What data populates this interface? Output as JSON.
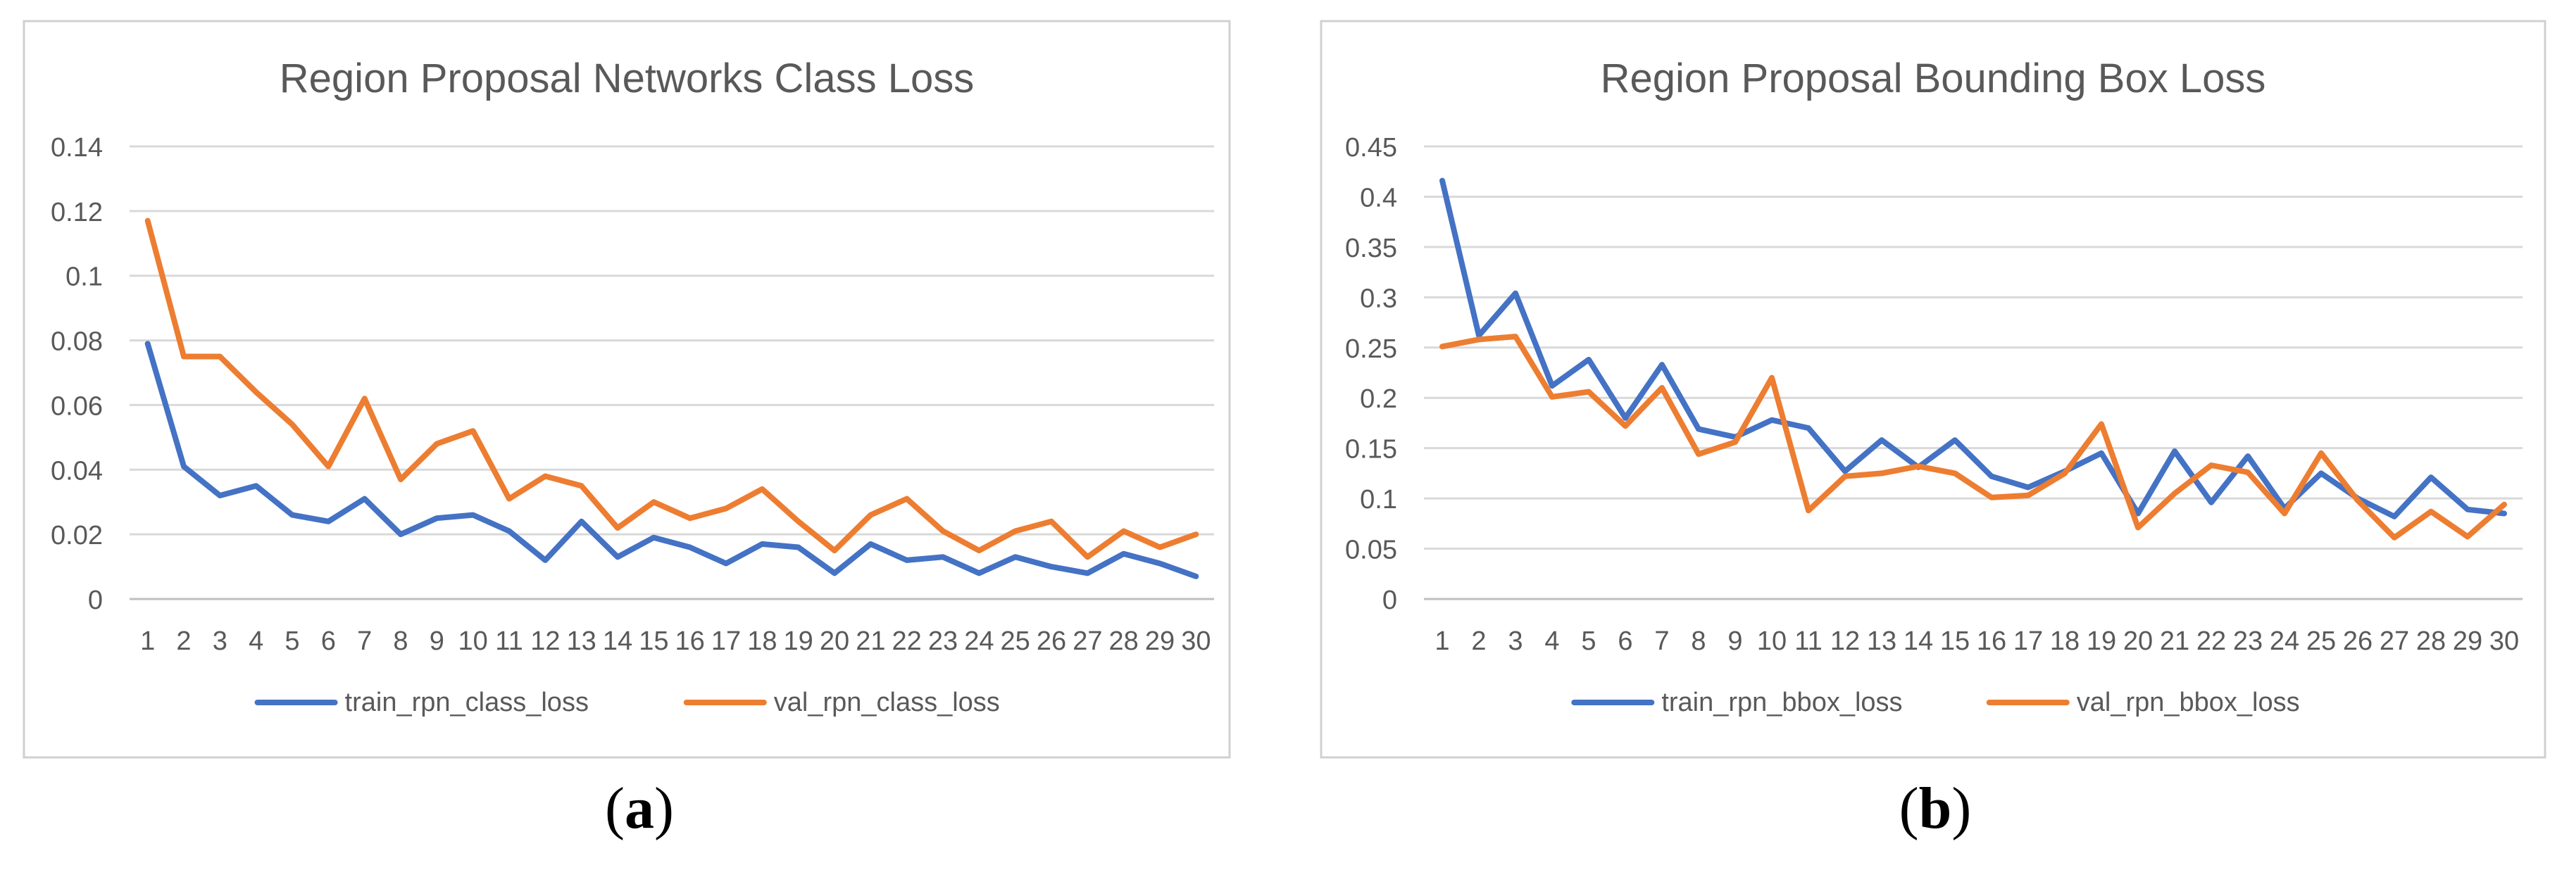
{
  "subfigure_labels": [
    {
      "open": "(",
      "letter": "a",
      "close": ")"
    },
    {
      "open": "(",
      "letter": "b",
      "close": ")"
    }
  ],
  "colors": {
    "train": "#4472C4",
    "val": "#ED7D31",
    "grid": "#D9D9D9",
    "border": "#D0D0D0",
    "axis_text": "#595959"
  },
  "chart_data": [
    {
      "type": "line",
      "title": "Region Proposal Networks Class Loss",
      "xlabel": "",
      "ylabel": "",
      "ylim": [
        0,
        0.14
      ],
      "yticks": [
        0,
        0.02,
        0.04,
        0.06,
        0.08,
        0.1,
        0.12,
        0.14
      ],
      "ytick_labels": [
        "0",
        "0.02",
        "0.04",
        "0.06",
        "0.08",
        "0.1",
        "0.12",
        "0.14"
      ],
      "grid": true,
      "legend_position": "bottom",
      "categories": [
        "1",
        "2",
        "3",
        "4",
        "5",
        "6",
        "7",
        "8",
        "9",
        "10",
        "11",
        "12",
        "13",
        "14",
        "15",
        "16",
        "17",
        "18",
        "19",
        "20",
        "21",
        "22",
        "23",
        "24",
        "25",
        "26",
        "27",
        "28",
        "29",
        "30"
      ],
      "series": [
        {
          "name": "train_rpn_class_loss",
          "color": "#4472C4",
          "values": [
            0.079,
            0.041,
            0.032,
            0.035,
            0.026,
            0.024,
            0.031,
            0.02,
            0.025,
            0.026,
            0.021,
            0.012,
            0.024,
            0.013,
            0.019,
            0.016,
            0.011,
            0.017,
            0.016,
            0.008,
            0.017,
            0.012,
            0.013,
            0.008,
            0.013,
            0.01,
            0.008,
            0.014,
            0.011,
            0.007
          ]
        },
        {
          "name": "val_rpn_class_loss",
          "color": "#ED7D31",
          "values": [
            0.117,
            0.075,
            0.075,
            0.064,
            0.054,
            0.041,
            0.062,
            0.037,
            0.048,
            0.052,
            0.031,
            0.038,
            0.035,
            0.022,
            0.03,
            0.025,
            0.028,
            0.034,
            0.024,
            0.015,
            0.026,
            0.031,
            0.021,
            0.015,
            0.021,
            0.024,
            0.013,
            0.021,
            0.016,
            0.02
          ]
        }
      ]
    },
    {
      "type": "line",
      "title": "Region Proposal Bounding Box Loss",
      "xlabel": "",
      "ylabel": "",
      "ylim": [
        0,
        0.45
      ],
      "yticks": [
        0,
        0.05,
        0.1,
        0.15,
        0.2,
        0.25,
        0.3,
        0.35,
        0.4,
        0.45
      ],
      "ytick_labels": [
        "0",
        "0.05",
        "0.1",
        "0.15",
        "0.2",
        "0.25",
        "0.3",
        "0.35",
        "0.4",
        "0.45"
      ],
      "grid": true,
      "legend_position": "bottom",
      "categories": [
        "1",
        "2",
        "3",
        "4",
        "5",
        "6",
        "7",
        "8",
        "9",
        "10",
        "11",
        "12",
        "13",
        "14",
        "15",
        "16",
        "17",
        "18",
        "19",
        "20",
        "21",
        "22",
        "23",
        "24",
        "25",
        "26",
        "27",
        "28",
        "29",
        "30"
      ],
      "series": [
        {
          "name": "train_rpn_bbox_loss",
          "color": "#4472C4",
          "values": [
            0.416,
            0.262,
            0.304,
            0.212,
            0.238,
            0.18,
            0.233,
            0.169,
            0.161,
            0.178,
            0.17,
            0.127,
            0.158,
            0.131,
            0.158,
            0.122,
            0.111,
            0.127,
            0.145,
            0.085,
            0.147,
            0.096,
            0.142,
            0.09,
            0.125,
            0.1,
            0.082,
            0.121,
            0.089,
            0.085
          ]
        },
        {
          "name": "val_rpn_bbox_loss",
          "color": "#ED7D31",
          "values": [
            0.251,
            0.258,
            0.261,
            0.201,
            0.206,
            0.172,
            0.21,
            0.144,
            0.156,
            0.22,
            0.088,
            0.122,
            0.125,
            0.132,
            0.125,
            0.101,
            0.103,
            0.125,
            0.174,
            0.071,
            0.105,
            0.133,
            0.126,
            0.085,
            0.145,
            0.098,
            0.061,
            0.087,
            0.062,
            0.094
          ]
        }
      ]
    }
  ]
}
